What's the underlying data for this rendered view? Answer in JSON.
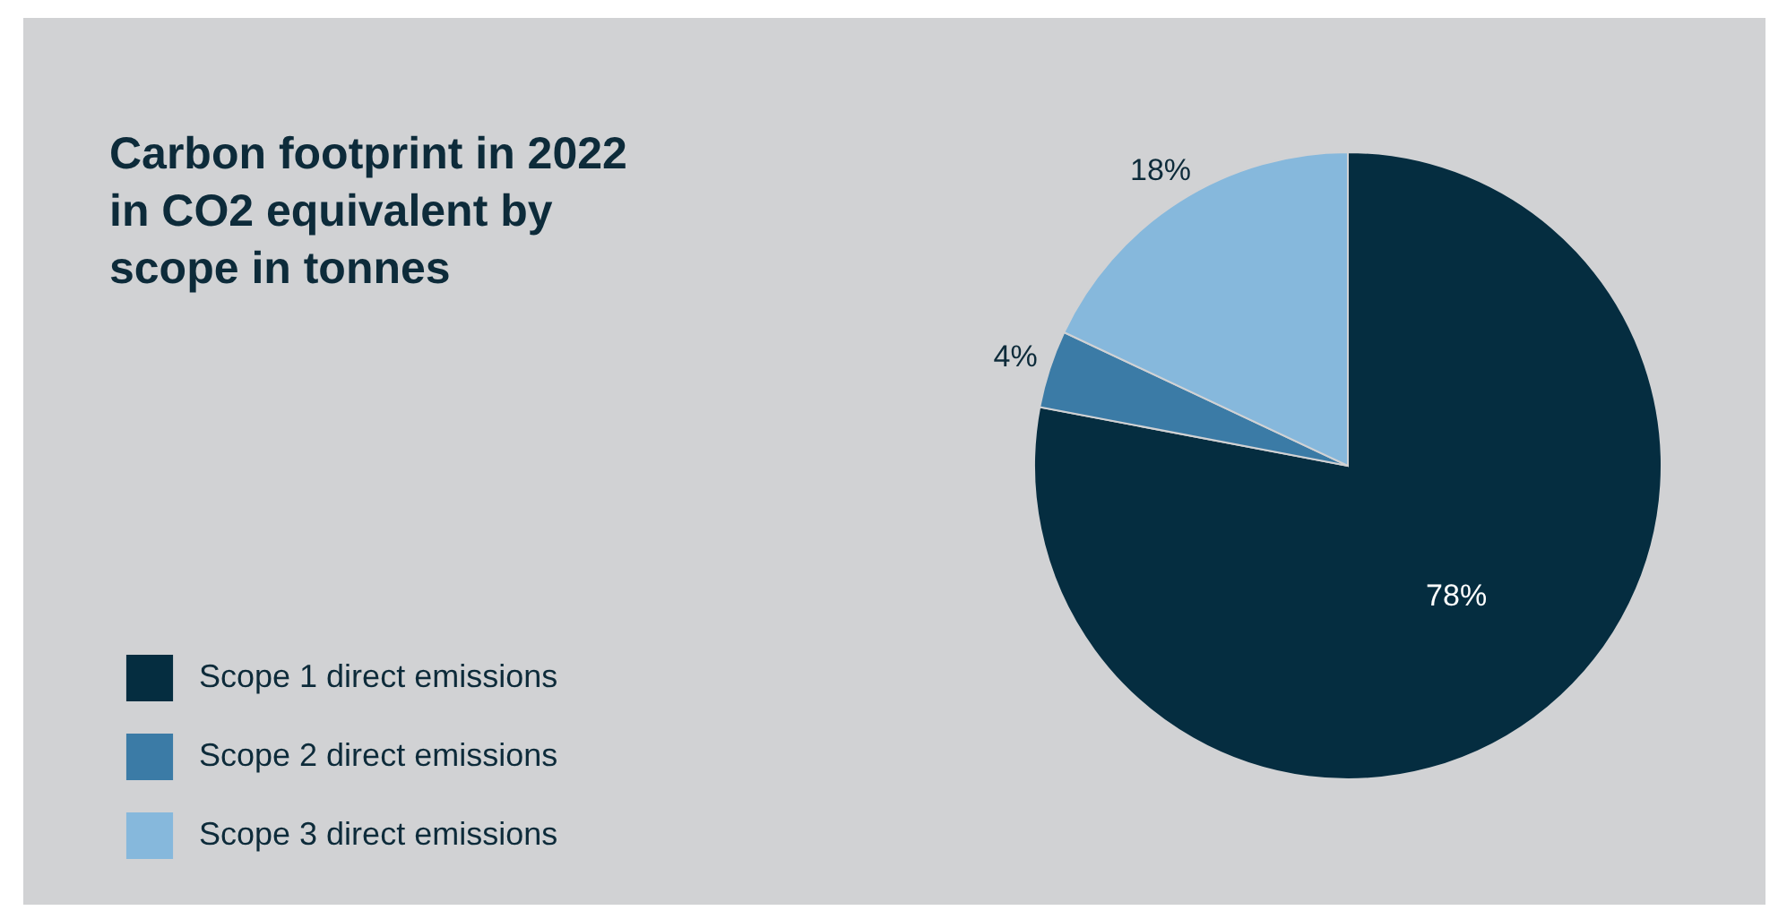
{
  "chart_data": {
    "type": "pie",
    "title": "Carbon footprint in 2022\nin CO2 equivalent by\nscope in tonnes",
    "categories": [
      "Scope 1 direct emissions",
      "Scope 2 direct emissions",
      "Scope 3 direct emissions"
    ],
    "values": [
      78,
      4,
      18
    ],
    "colors": [
      "#052d40",
      "#3b7ba6",
      "#86b8dc"
    ],
    "value_labels": [
      "78%",
      "4%",
      "18%"
    ],
    "legend": "bottom left"
  }
}
